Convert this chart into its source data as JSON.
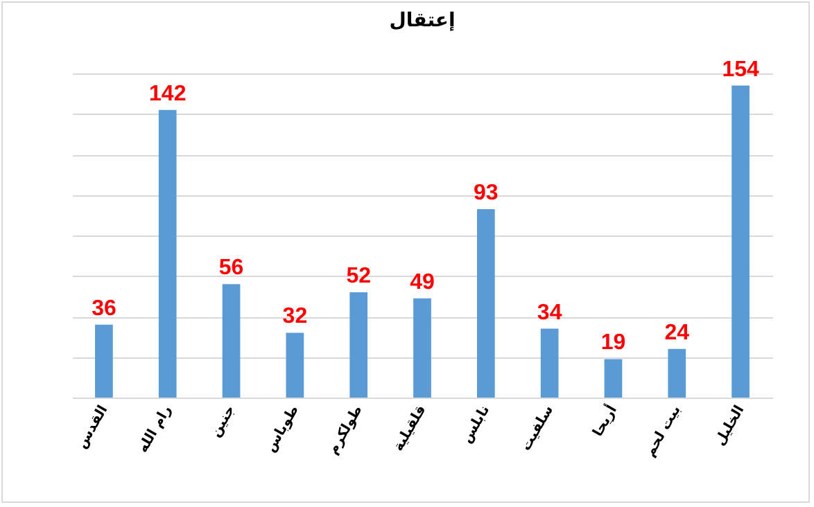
{
  "chart_data": {
    "type": "bar",
    "title": "إعتقال",
    "categories": [
      "القدس",
      "رام الله",
      "جنين",
      "طوباس",
      "طولكرم",
      "قلقيلية",
      "نابلس",
      "سلفيت",
      "أريحا",
      "بيت لحم",
      "الخليل"
    ],
    "values": [
      36,
      142,
      56,
      32,
      52,
      49,
      93,
      34,
      19,
      24,
      154
    ],
    "color": "#5b9bd5",
    "grid": "y",
    "tick_labels": "x",
    "data_labels": true
  }
}
